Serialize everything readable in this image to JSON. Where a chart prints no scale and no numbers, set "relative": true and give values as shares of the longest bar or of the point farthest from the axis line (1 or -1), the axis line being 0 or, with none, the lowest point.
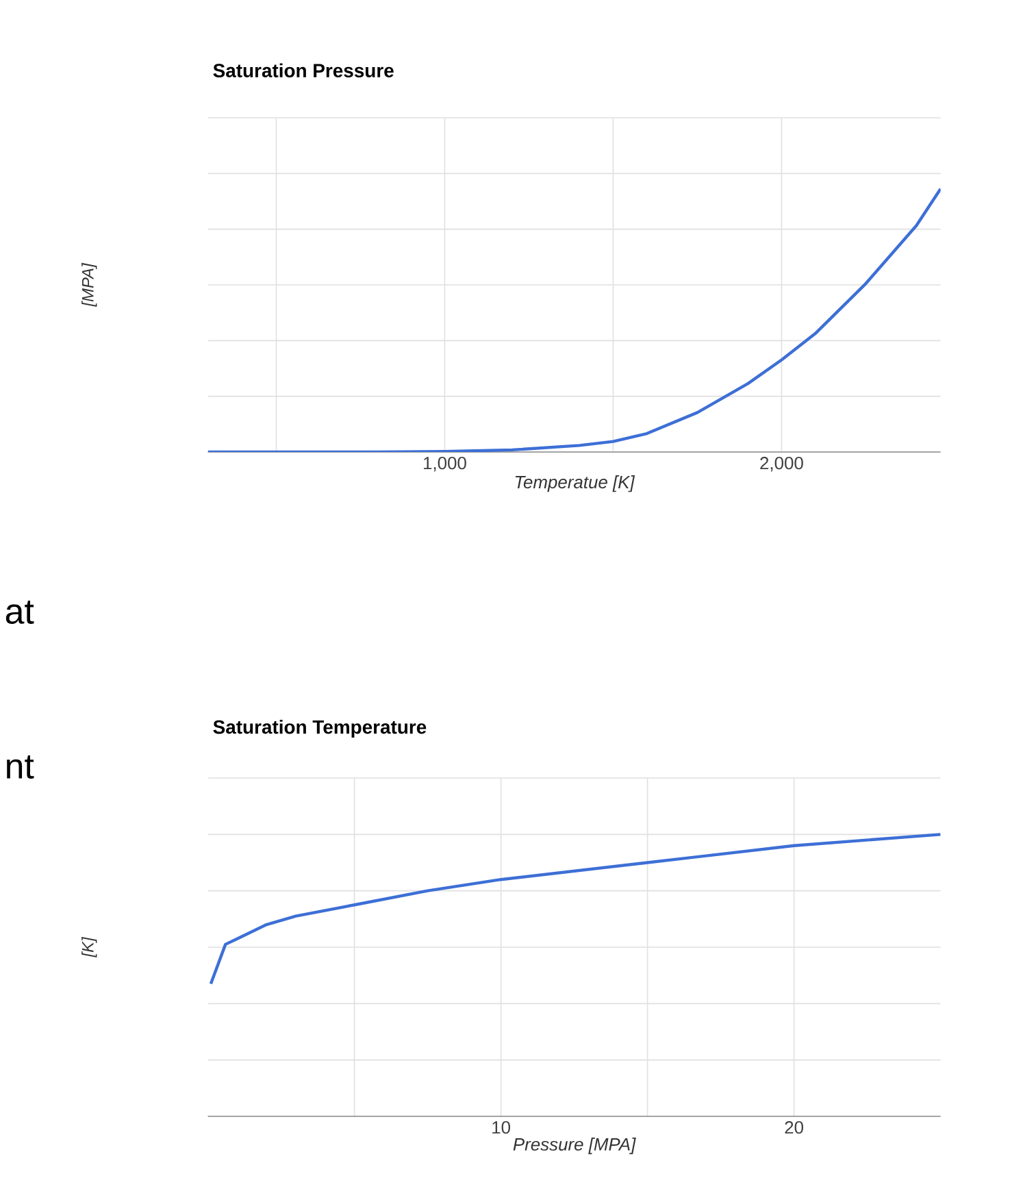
{
  "chart_data": [
    {
      "type": "line",
      "title": "Saturation Pressure",
      "xlabel": "Temperatue [K]",
      "ylabel": "[MPA]",
      "relative": true,
      "x": [
        297,
        800,
        1000,
        1200,
        1400,
        1500,
        1600,
        1750,
        1900,
        2000,
        2100,
        2250,
        2400,
        2472
      ],
      "series": [
        {
          "color": "#3d6fd6",
          "values": [
            0,
            0,
            0.002,
            0.008,
            0.025,
            0.04,
            0.07,
            0.15,
            0.26,
            0.35,
            0.45,
            0.64,
            0.86,
            1
          ]
        }
      ],
      "xlim": [
        297,
        2472
      ],
      "xticks": [
        {
          "value": 500,
          "label": null
        },
        {
          "value": 1000,
          "label": "1,000"
        },
        {
          "value": 1500,
          "label": null
        },
        {
          "value": 2000,
          "label": "2,000"
        }
      ],
      "grid": true,
      "tick_labels": "x"
    },
    {
      "type": "line",
      "title": "Saturation Temperature",
      "xlabel": "Pressure [MPA]",
      "ylabel": "[K]",
      "relative": true,
      "x": [
        0.1,
        0.6,
        1,
        2,
        3,
        5,
        7.5,
        10,
        15,
        20,
        25
      ],
      "series": [
        {
          "color": "#3d6fd6",
          "values": [
            0.47,
            0.61,
            0.63,
            0.68,
            0.71,
            0.75,
            0.8,
            0.84,
            0.9,
            0.96,
            1
          ]
        }
      ],
      "xlim": [
        0,
        25
      ],
      "xticks": [
        {
          "value": 5,
          "label": null
        },
        {
          "value": 10,
          "label": "10"
        },
        {
          "value": 15,
          "label": null
        },
        {
          "value": 20,
          "label": "20"
        }
      ],
      "grid": true,
      "tick_labels": "x",
      "annotations": [
        "at",
        "nt"
      ]
    }
  ]
}
